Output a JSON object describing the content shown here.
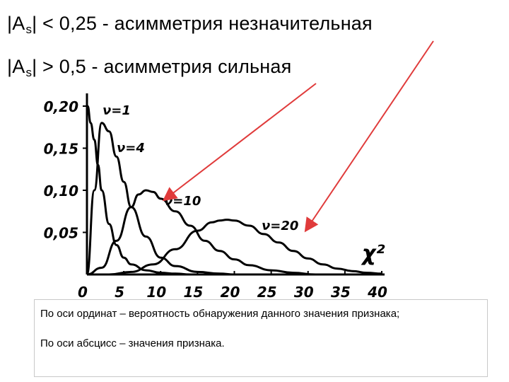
{
  "heading": {
    "line1": {
      "prefix": "|A",
      "sub": "s",
      "suffix": "| < 0,25 - асимметрия незначительная"
    },
    "line2": {
      "prefix": "|A",
      "sub": "s",
      "suffix": "| > 0,5 - асимметрия сильная"
    }
  },
  "captions": {
    "line1": "По оси ординат – вероятность обнаружения данного значения признака;",
    "line2": "По оси абсцисс – значения признака."
  },
  "arrow_color": "#e03b3b",
  "chart_data": {
    "type": "line",
    "title": "",
    "xlabel": "χ²",
    "ylabel": "",
    "xlim": [
      0,
      40
    ],
    "ylim": [
      0,
      0.2
    ],
    "x_ticks": [
      "0",
      "5",
      "10",
      "15",
      "20",
      "25",
      "30",
      "35",
      "40"
    ],
    "y_ticks": [
      "0,20",
      "0,15",
      "0,10",
      "0,05"
    ],
    "series": [
      {
        "name": "ν=1",
        "x": [
          0.1,
          0.5,
          1,
          1.5,
          2,
          3,
          4,
          5,
          6,
          8,
          10,
          12,
          14
        ],
        "y": [
          0.2,
          0.18,
          0.16,
          0.13,
          0.1,
          0.06,
          0.035,
          0.02,
          0.012,
          0.005,
          0.002,
          0.001,
          0.0
        ]
      },
      {
        "name": "ν=4",
        "x": [
          0,
          1,
          2,
          3,
          4,
          5,
          6,
          8,
          10,
          12,
          15,
          18,
          20
        ],
        "y": [
          0,
          0.1,
          0.18,
          0.17,
          0.14,
          0.11,
          0.08,
          0.045,
          0.02,
          0.01,
          0.003,
          0.001,
          0.0
        ]
      },
      {
        "name": "ν=10",
        "x": [
          0,
          2,
          4,
          6,
          7,
          8,
          9,
          10,
          12,
          14,
          16,
          18,
          20,
          22,
          25,
          28,
          31
        ],
        "y": [
          0,
          0.008,
          0.04,
          0.08,
          0.095,
          0.1,
          0.098,
          0.09,
          0.075,
          0.058,
          0.04,
          0.028,
          0.018,
          0.011,
          0.005,
          0.002,
          0.0
        ]
      },
      {
        "name": "ν=20",
        "x": [
          3,
          6,
          9,
          12,
          15,
          17,
          18,
          19,
          20,
          22,
          24,
          26,
          28,
          30,
          32,
          34,
          36,
          38,
          40
        ],
        "y": [
          0,
          0.003,
          0.012,
          0.03,
          0.052,
          0.062,
          0.064,
          0.065,
          0.064,
          0.058,
          0.048,
          0.038,
          0.028,
          0.019,
          0.012,
          0.007,
          0.004,
          0.002,
          0.001
        ]
      }
    ],
    "grid": false,
    "legend": "inline labels"
  }
}
